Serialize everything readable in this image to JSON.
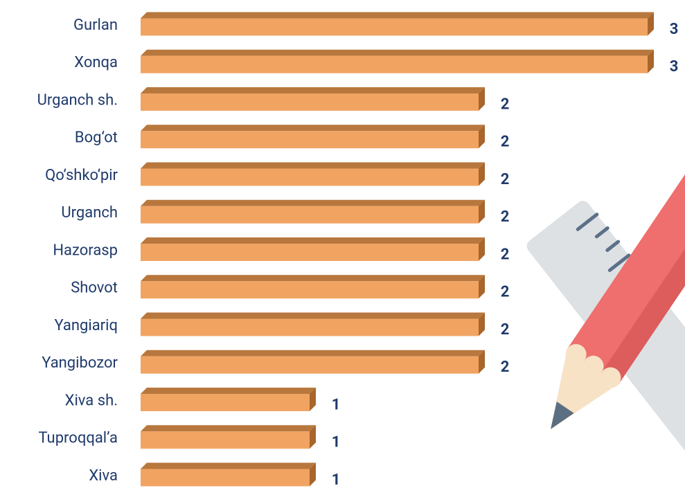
{
  "chart_data": {
    "type": "bar",
    "orientation": "horizontal",
    "categories": [
      "Gurlan",
      "Xonqa",
      "Urganch sh.",
      "Bog‘ot",
      "Qo‘shko‘pir",
      "Urganch",
      "Hazorasp",
      "Shovot",
      "Yangiariq",
      "Yangibozor",
      "Xiva sh.",
      "Tuproqqal’a",
      "Xiva"
    ],
    "values": [
      3,
      3,
      2,
      2,
      2,
      2,
      2,
      2,
      2,
      2,
      1,
      1,
      1
    ],
    "color": "#f1a462",
    "xlim": [
      0,
      3
    ]
  }
}
